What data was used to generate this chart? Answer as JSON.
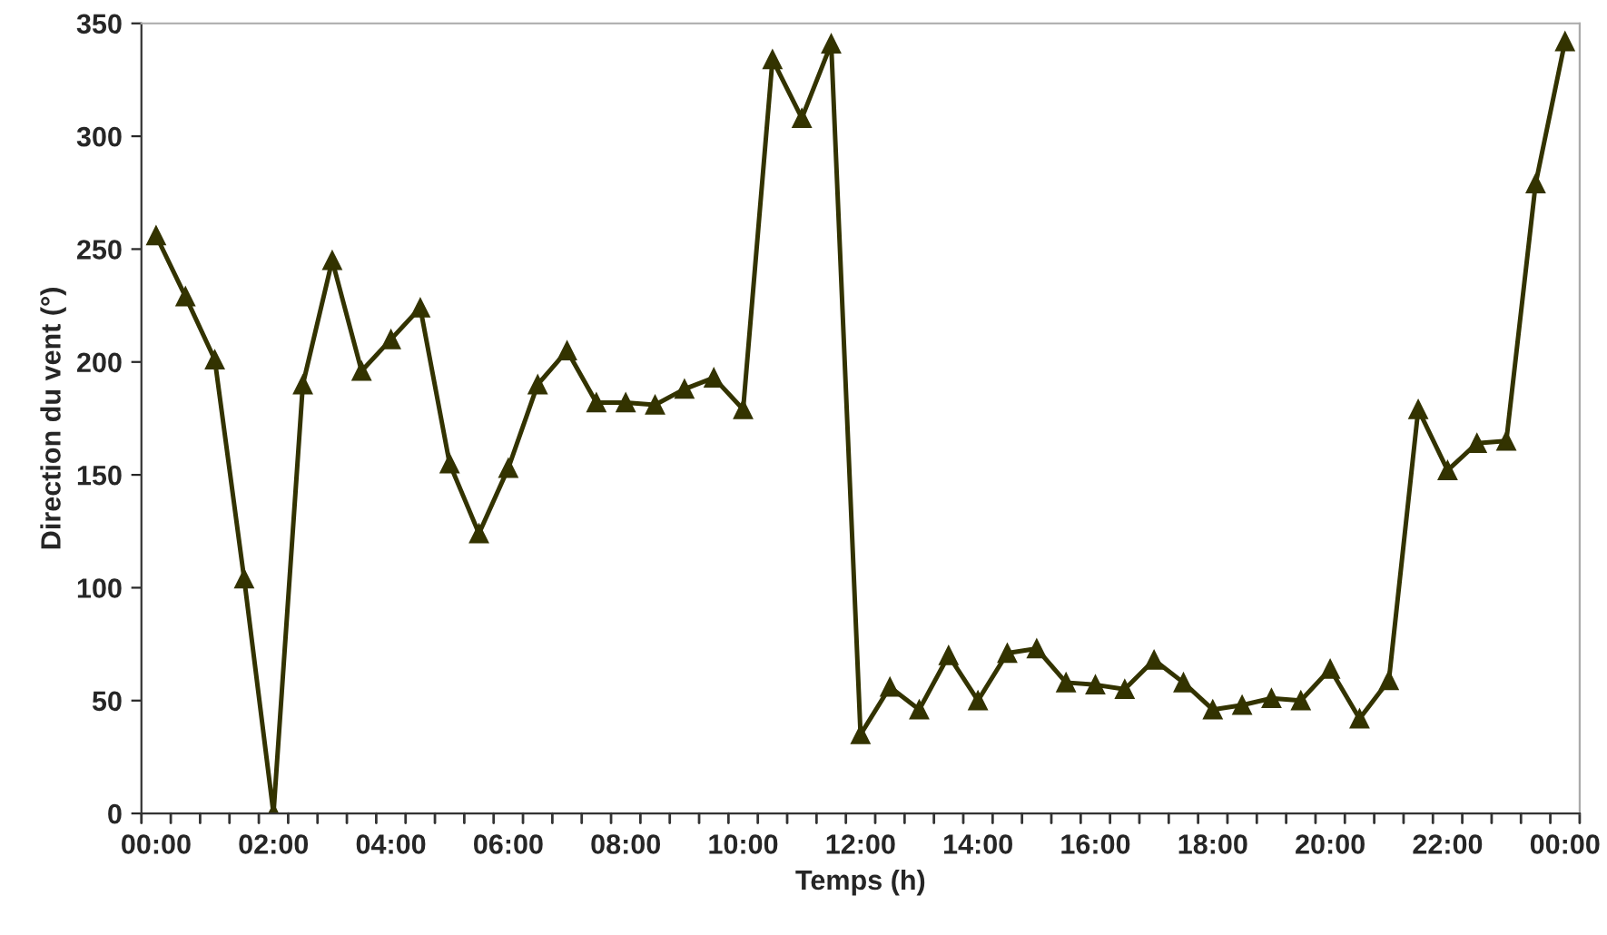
{
  "chart_data": {
    "type": "line",
    "xlabel": "Temps (h)",
    "ylabel": "Direction du vent (°)",
    "categories": [
      "00:00",
      null,
      null,
      null,
      "02:00",
      null,
      null,
      null,
      "04:00",
      null,
      null,
      null,
      "06:00",
      null,
      null,
      null,
      "08:00",
      null,
      null,
      null,
      "10:00",
      null,
      null,
      null,
      "12:00",
      null,
      null,
      null,
      "14:00",
      null,
      null,
      null,
      "16:00",
      null,
      null,
      null,
      "18:00",
      null,
      null,
      null,
      "20:00",
      null,
      null,
      null,
      "22:00",
      null,
      null,
      null,
      "00:00"
    ],
    "series": [
      {
        "color": "#333300",
        "values": [
          256,
          229,
          201,
          104,
          0,
          190,
          245,
          196,
          210,
          224,
          155,
          124,
          153,
          190,
          205,
          182,
          182,
          181,
          188,
          193,
          179,
          334,
          308,
          341,
          35,
          56,
          46,
          70,
          50,
          71,
          73,
          58,
          57,
          55,
          68,
          58,
          46,
          48,
          51,
          50,
          64,
          42,
          59,
          179,
          152,
          164,
          165,
          279,
          342
        ]
      }
    ],
    "ylim": [
      0,
      350
    ],
    "yticks": [
      0,
      50,
      100,
      150,
      200,
      250,
      300,
      350
    ],
    "marker": "triangle",
    "line_style": "solid",
    "grid": false,
    "legend": false
  }
}
